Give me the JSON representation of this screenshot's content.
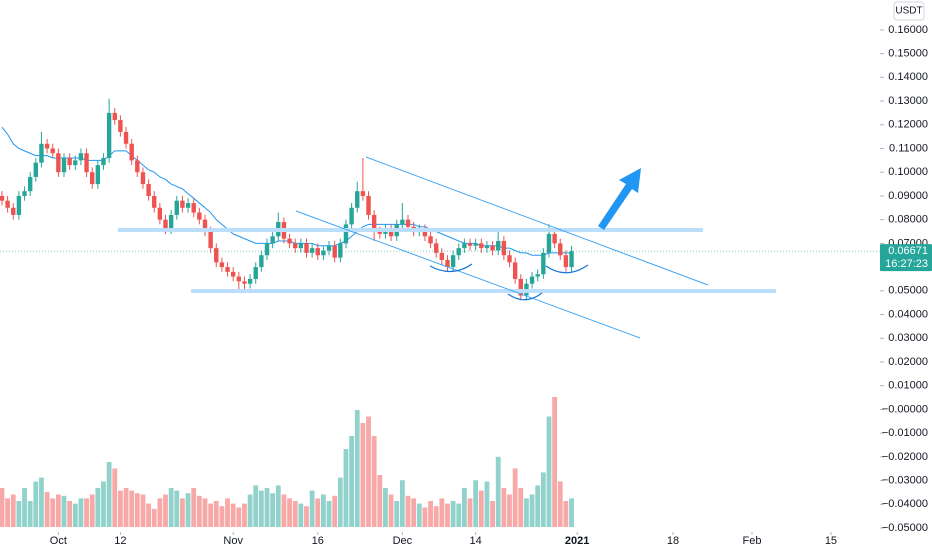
{
  "chart_data": {
    "type": "candlestick",
    "currency": "USDT",
    "last_price": 0.06671,
    "countdown": "16:27:23",
    "up_color": "#26a69a",
    "down_color": "#ef5350",
    "ma_color": "#2196f3",
    "xlim": [
      -0.35,
      155.7
    ],
    "ylim": [
      -0.0503,
      0.1726
    ],
    "yticks": [
      {
        "value": 0.16,
        "label": "0.16000"
      },
      {
        "value": 0.15,
        "label": "0.15000"
      },
      {
        "value": 0.14,
        "label": "0.14000"
      },
      {
        "value": 0.13,
        "label": "0.13000"
      },
      {
        "value": 0.12,
        "label": "0.12000"
      },
      {
        "value": 0.11,
        "label": "0.11000"
      },
      {
        "value": 0.1,
        "label": "0.10000"
      },
      {
        "value": 0.09,
        "label": "0.09000"
      },
      {
        "value": 0.08,
        "label": "0.08000"
      },
      {
        "value": 0.07,
        "label": "0.07000"
      },
      {
        "value": 0.06,
        "label": "0.06000"
      },
      {
        "value": 0.05,
        "label": "0.05000"
      },
      {
        "value": 0.04,
        "label": "0.04000"
      },
      {
        "value": 0.03,
        "label": "0.03000"
      },
      {
        "value": 0.02,
        "label": "0.02000"
      },
      {
        "value": 0.01,
        "label": "0.01000"
      },
      {
        "value": 0,
        "label": "−0.00000"
      },
      {
        "value": -0.01,
        "label": "−0.01000"
      },
      {
        "value": -0.02,
        "label": "−0.02000"
      },
      {
        "value": -0.03,
        "label": "−0.03000"
      },
      {
        "value": -0.04,
        "label": "−0.04000"
      },
      {
        "value": -0.05,
        "label": "−0.05000"
      }
    ],
    "xticks": [
      {
        "value": 10,
        "label": "Oct"
      },
      {
        "value": 21,
        "label": "12"
      },
      {
        "value": 41,
        "label": "Nov"
      },
      {
        "value": 56,
        "label": "16"
      },
      {
        "value": 71,
        "label": "Dec"
      },
      {
        "value": 84,
        "label": "14"
      },
      {
        "value": 102,
        "label": "2021"
      },
      {
        "value": 119,
        "label": "18"
      },
      {
        "value": 133,
        "label": "Feb"
      },
      {
        "value": 147,
        "label": "15"
      }
    ],
    "candles": [
      [
        0.09,
        0.092,
        0.086,
        0.088
      ],
      [
        0.088,
        0.09,
        0.083,
        0.085
      ],
      [
        0.085,
        0.087,
        0.08,
        0.082
      ],
      [
        0.082,
        0.092,
        0.08,
        0.09
      ],
      [
        0.09,
        0.094,
        0.088,
        0.092
      ],
      [
        0.092,
        0.1,
        0.09,
        0.098
      ],
      [
        0.098,
        0.106,
        0.096,
        0.104
      ],
      [
        0.104,
        0.117,
        0.102,
        0.112
      ],
      [
        0.112,
        0.114,
        0.108,
        0.11
      ],
      [
        0.11,
        0.112,
        0.106,
        0.108
      ],
      [
        0.108,
        0.11,
        0.098,
        0.1
      ],
      [
        0.1,
        0.108,
        0.098,
        0.106
      ],
      [
        0.106,
        0.108,
        0.101,
        0.103
      ],
      [
        0.103,
        0.107,
        0.101,
        0.105
      ],
      [
        0.105,
        0.11,
        0.103,
        0.108
      ],
      [
        0.108,
        0.11,
        0.098,
        0.1
      ],
      [
        0.1,
        0.102,
        0.093,
        0.095
      ],
      [
        0.095,
        0.105,
        0.093,
        0.103
      ],
      [
        0.103,
        0.108,
        0.101,
        0.106
      ],
      [
        0.106,
        0.131,
        0.104,
        0.125
      ],
      [
        0.125,
        0.127,
        0.12,
        0.122
      ],
      [
        0.122,
        0.124,
        0.115,
        0.117
      ],
      [
        0.117,
        0.119,
        0.11,
        0.112
      ],
      [
        0.112,
        0.114,
        0.103,
        0.105
      ],
      [
        0.105,
        0.107,
        0.098,
        0.1
      ],
      [
        0.1,
        0.102,
        0.093,
        0.095
      ],
      [
        0.095,
        0.097,
        0.088,
        0.09
      ],
      [
        0.09,
        0.092,
        0.083,
        0.085
      ],
      [
        0.085,
        0.087,
        0.078,
        0.08
      ],
      [
        0.08,
        0.082,
        0.074,
        0.076
      ],
      [
        0.076,
        0.084,
        0.074,
        0.082
      ],
      [
        0.082,
        0.09,
        0.08,
        0.088
      ],
      [
        0.088,
        0.09,
        0.083,
        0.085
      ],
      [
        0.085,
        0.089,
        0.083,
        0.087
      ],
      [
        0.087,
        0.089,
        0.081,
        0.083
      ],
      [
        0.083,
        0.085,
        0.078,
        0.08
      ],
      [
        0.08,
        0.082,
        0.073,
        0.075
      ],
      [
        0.075,
        0.077,
        0.066,
        0.068
      ],
      [
        0.068,
        0.07,
        0.06,
        0.062
      ],
      [
        0.062,
        0.064,
        0.058,
        0.06
      ],
      [
        0.06,
        0.062,
        0.056,
        0.058
      ],
      [
        0.058,
        0.06,
        0.054,
        0.056
      ],
      [
        0.056,
        0.058,
        0.05,
        0.054
      ],
      [
        0.054,
        0.056,
        0.05,
        0.053
      ],
      [
        0.053,
        0.057,
        0.051,
        0.055
      ],
      [
        0.055,
        0.062,
        0.053,
        0.06
      ],
      [
        0.06,
        0.067,
        0.058,
        0.065
      ],
      [
        0.065,
        0.072,
        0.063,
        0.07
      ],
      [
        0.07,
        0.075,
        0.068,
        0.073
      ],
      [
        0.073,
        0.083,
        0.071,
        0.079
      ],
      [
        0.079,
        0.081,
        0.07,
        0.072
      ],
      [
        0.072,
        0.074,
        0.068,
        0.07
      ],
      [
        0.07,
        0.072,
        0.066,
        0.068
      ],
      [
        0.068,
        0.072,
        0.066,
        0.07
      ],
      [
        0.07,
        0.072,
        0.064,
        0.066
      ],
      [
        0.066,
        0.07,
        0.064,
        0.068
      ],
      [
        0.068,
        0.07,
        0.063,
        0.065
      ],
      [
        0.065,
        0.069,
        0.063,
        0.067
      ],
      [
        0.067,
        0.071,
        0.065,
        0.069
      ],
      [
        0.069,
        0.071,
        0.062,
        0.064
      ],
      [
        0.064,
        0.072,
        0.062,
        0.07
      ],
      [
        0.07,
        0.08,
        0.068,
        0.078
      ],
      [
        0.078,
        0.087,
        0.076,
        0.085
      ],
      [
        0.085,
        0.096,
        0.083,
        0.092
      ],
      [
        0.092,
        0.106,
        0.088,
        0.09
      ],
      [
        0.09,
        0.092,
        0.08,
        0.082
      ],
      [
        0.082,
        0.084,
        0.071,
        0.075
      ],
      [
        0.075,
        0.077,
        0.072,
        0.074
      ],
      [
        0.074,
        0.078,
        0.072,
        0.076
      ],
      [
        0.076,
        0.078,
        0.071,
        0.073
      ],
      [
        0.073,
        0.08,
        0.071,
        0.078
      ],
      [
        0.078,
        0.087,
        0.076,
        0.08
      ],
      [
        0.08,
        0.082,
        0.075,
        0.077
      ],
      [
        0.077,
        0.079,
        0.073,
        0.075
      ],
      [
        0.075,
        0.078,
        0.073,
        0.076
      ],
      [
        0.076,
        0.078,
        0.071,
        0.073
      ],
      [
        0.073,
        0.075,
        0.068,
        0.07
      ],
      [
        0.07,
        0.072,
        0.064,
        0.066
      ],
      [
        0.066,
        0.068,
        0.061,
        0.063
      ],
      [
        0.063,
        0.065,
        0.058,
        0.06
      ],
      [
        0.06,
        0.067,
        0.058,
        0.065
      ],
      [
        0.065,
        0.07,
        0.063,
        0.068
      ],
      [
        0.068,
        0.072,
        0.066,
        0.07
      ],
      [
        0.07,
        0.072,
        0.067,
        0.069
      ],
      [
        0.069,
        0.072,
        0.067,
        0.07
      ],
      [
        0.07,
        0.072,
        0.066,
        0.068
      ],
      [
        0.068,
        0.071,
        0.066,
        0.069
      ],
      [
        0.069,
        0.071,
        0.065,
        0.067
      ],
      [
        0.067,
        0.076,
        0.065,
        0.071
      ],
      [
        0.071,
        0.073,
        0.063,
        0.065
      ],
      [
        0.065,
        0.067,
        0.06,
        0.062
      ],
      [
        0.062,
        0.064,
        0.053,
        0.055
      ],
      [
        0.055,
        0.057,
        0.046,
        0.048
      ],
      [
        0.048,
        0.055,
        0.046,
        0.053
      ],
      [
        0.053,
        0.058,
        0.051,
        0.056
      ],
      [
        0.056,
        0.059,
        0.054,
        0.057
      ],
      [
        0.057,
        0.068,
        0.055,
        0.066
      ],
      [
        0.066,
        0.078,
        0.064,
        0.074
      ],
      [
        0.074,
        0.076,
        0.068,
        0.07
      ],
      [
        0.07,
        0.072,
        0.063,
        0.065
      ],
      [
        0.065,
        0.067,
        0.058,
        0.06
      ],
      [
        0.06,
        0.069,
        0.058,
        0.06671
      ]
    ],
    "volumes": [
      30,
      22,
      25,
      20,
      30,
      20,
      35,
      38,
      27,
      22,
      25,
      24,
      20,
      18,
      22,
      22,
      25,
      30,
      35,
      50,
      45,
      28,
      30,
      28,
      26,
      25,
      18,
      14,
      22,
      25,
      30,
      28,
      22,
      26,
      30,
      24,
      22,
      18,
      20,
      16,
      22,
      18,
      15,
      18,
      25,
      32,
      28,
      30,
      26,
      32,
      25,
      22,
      20,
      18,
      16,
      28,
      22,
      25,
      20,
      24,
      38,
      60,
      70,
      90,
      80,
      85,
      70,
      40,
      30,
      25,
      20,
      36,
      24,
      22,
      18,
      15,
      20,
      16,
      22,
      18,
      20,
      18,
      30,
      22,
      36,
      28,
      35,
      20,
      54,
      30,
      25,
      45,
      30,
      22,
      25,
      32,
      42,
      85,
      100,
      35,
      20,
      22
    ],
    "ma": [
      0.119,
      0.116,
      0.112,
      0.11,
      0.109,
      0.108,
      0.107,
      0.107,
      0.107,
      0.106,
      0.106,
      0.106,
      0.106,
      0.106,
      0.106,
      0.105,
      0.105,
      0.105,
      0.105,
      0.107,
      0.109,
      0.109,
      0.109,
      0.107,
      0.105,
      0.103,
      0.101,
      0.1,
      0.098,
      0.097,
      0.095,
      0.094,
      0.093,
      0.091,
      0.089,
      0.087,
      0.085,
      0.083,
      0.08,
      0.078,
      0.076,
      0.074,
      0.073,
      0.072,
      0.071,
      0.07,
      0.07,
      0.07,
      0.07,
      0.071,
      0.071,
      0.071,
      0.07,
      0.07,
      0.07,
      0.07,
      0.069,
      0.069,
      0.069,
      0.069,
      0.07,
      0.071,
      0.073,
      0.075,
      0.077,
      0.078,
      0.078,
      0.078,
      0.078,
      0.078,
      0.078,
      0.078,
      0.078,
      0.078,
      0.077,
      0.077,
      0.076,
      0.075,
      0.074,
      0.073,
      0.072,
      0.071,
      0.07,
      0.07,
      0.07,
      0.069,
      0.069,
      0.069,
      0.069,
      0.068,
      0.068,
      0.067,
      0.066,
      0.066,
      0.065,
      0.065,
      0.065,
      0.066,
      0.066,
      0.066,
      0.066,
      0.066
    ]
  }
}
